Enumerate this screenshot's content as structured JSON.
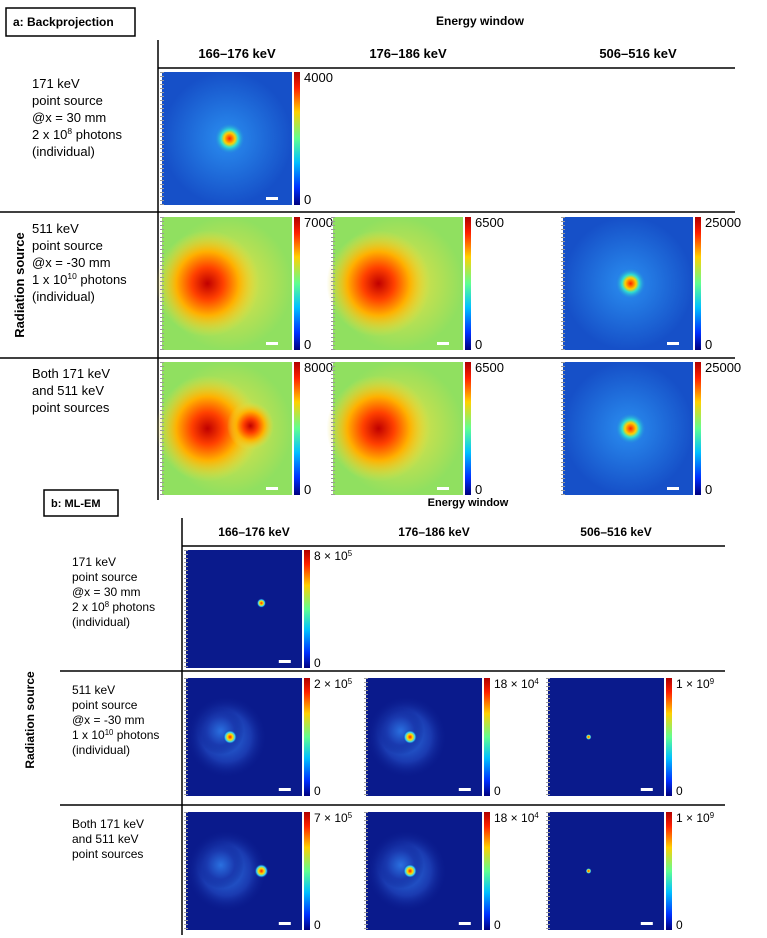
{
  "panel_a": {
    "label": "a: Backprojection",
    "column_group": "Energy window",
    "row_group": "Radiation source",
    "columns": [
      "166–176 keV",
      "176–186 keV",
      "506–516 keV"
    ],
    "rows": [
      {
        "lines": [
          "171 keV",
          "point source",
          "@x = 30 mm",
          {
            "text": "2 x 10",
            "sup": "8",
            "tail": " photons"
          },
          "(individual)"
        ],
        "colorbars": [
          {
            "max": "4000",
            "min": "0"
          },
          null,
          null
        ]
      },
      {
        "lines": [
          "511 keV",
          "point source",
          "@x = -30 mm",
          {
            "text": "1 x 10",
            "sup": "10",
            "tail": " photons"
          },
          "(individual)"
        ],
        "colorbars": [
          {
            "max": "7000",
            "min": "0"
          },
          {
            "max": "6500",
            "min": "0"
          },
          {
            "max": "25000",
            "min": "0"
          }
        ]
      },
      {
        "lines": [
          "Both 171 keV",
          "and 511 keV",
          "point sources"
        ],
        "colorbars": [
          {
            "max": "8000",
            "min": "0"
          },
          {
            "max": "6500",
            "min": "0"
          },
          {
            "max": "25000",
            "min": "0"
          }
        ]
      }
    ]
  },
  "panel_b": {
    "label": "b: ML-EM",
    "column_group": "Energy window",
    "row_group": "Radiation source",
    "columns": [
      "166–176 keV",
      "176–186 keV",
      "506–516 keV"
    ],
    "rows": [
      {
        "lines": [
          "171 keV",
          "point source",
          "@x = 30 mm",
          {
            "text": "2 x 10",
            "sup": "8",
            "tail": " photons"
          },
          "(individual)"
        ],
        "colorbars": [
          {
            "max": {
              "text": "8 × 10",
              "sup": "5",
              "tail": ""
            },
            "min": "0"
          },
          null,
          null
        ]
      },
      {
        "lines": [
          "511 keV",
          "point source",
          "@x = -30 mm",
          {
            "text": "1 x 10",
            "sup": "10",
            "tail": " photons"
          },
          "(individual)"
        ],
        "colorbars": [
          {
            "max": {
              "text": "2 × 10",
              "sup": "5",
              "tail": ""
            },
            "min": "0"
          },
          {
            "max": {
              "text": "18 × 10",
              "sup": "4",
              "tail": ""
            },
            "min": "0"
          },
          {
            "max": {
              "text": "1 × 10",
              "sup": "9",
              "tail": ""
            },
            "min": "0"
          }
        ]
      },
      {
        "lines": [
          "Both 171 keV",
          "and 511 keV",
          "point sources"
        ],
        "colorbars": [
          {
            "max": {
              "text": "7 × 10",
              "sup": "5",
              "tail": ""
            },
            "min": "0"
          },
          {
            "max": {
              "text": "18 × 10",
              "sup": "4",
              "tail": ""
            },
            "min": "0"
          },
          {
            "max": {
              "text": "1 × 10",
              "sup": "9",
              "tail": ""
            },
            "min": "0"
          }
        ]
      }
    ]
  }
}
